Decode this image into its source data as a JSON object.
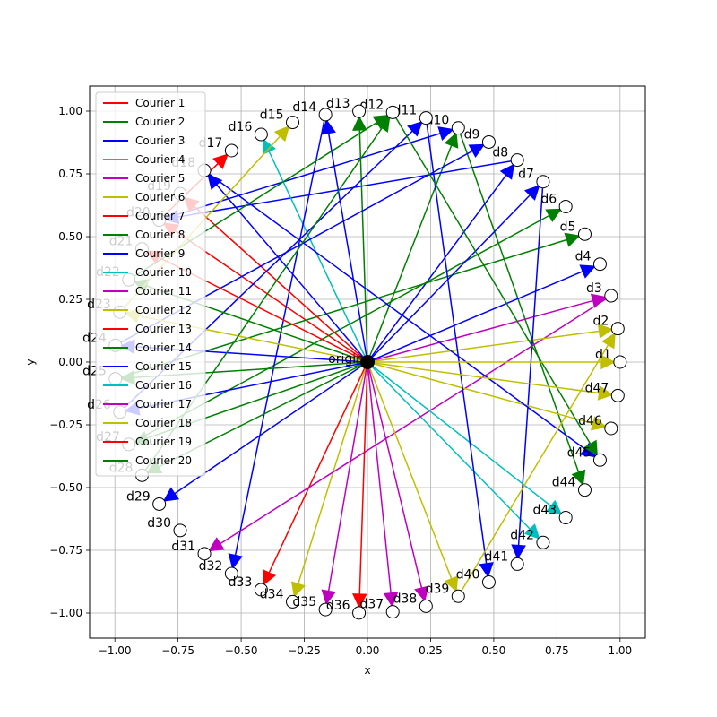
{
  "chart_data": {
    "type": "scatter",
    "title": "",
    "xlabel": "x",
    "ylabel": "y",
    "xlim": [
      -1.1,
      1.1
    ],
    "ylim": [
      -1.1,
      1.1
    ],
    "xticks": [
      -1.0,
      -0.75,
      -0.5,
      -0.25,
      0.0,
      0.25,
      0.5,
      0.75,
      1.0
    ],
    "yticks": [
      -1.0,
      -0.75,
      -0.5,
      -0.25,
      0.0,
      0.25,
      0.5,
      0.75,
      1.0
    ],
    "xtick_labels": [
      "−1.00",
      "−0.75",
      "−0.50",
      "−0.25",
      "0.00",
      "0.25",
      "0.50",
      "0.75",
      "1.00"
    ],
    "ytick_labels": [
      "−1.00",
      "−0.75",
      "−0.50",
      "−0.25",
      "0.00",
      "0.25",
      "0.50",
      "0.75",
      "1.00"
    ],
    "grid": true,
    "legend_position": "upper-left",
    "origin": {
      "label": "origin",
      "x": 0,
      "y": 0
    },
    "destinations_count": 47,
    "destinations_note": "d1..d47 evenly spaced on unit circle, angle = 2*pi*(i-1)/47",
    "destination_labels": [
      "d1",
      "d2",
      "d3",
      "d4",
      "d5",
      "d6",
      "d7",
      "d8",
      "d9",
      "d10",
      "d11",
      "d12",
      "d13",
      "d14",
      "d15",
      "d16",
      "d17",
      "d18",
      "d19",
      "d20",
      "d21",
      "d22",
      "d23",
      "d24",
      "d25",
      "d26",
      "d27",
      "d28",
      "d29",
      "d30",
      "d31",
      "d32",
      "d33",
      "d34",
      "d35",
      "d36",
      "d37",
      "d38",
      "d39",
      "d40",
      "d41",
      "d42",
      "d43",
      "d44",
      "d45",
      "d46",
      "d47"
    ],
    "series": [
      {
        "name": "Courier 1",
        "color": "#ff0000",
        "route": [
          33
        ]
      },
      {
        "name": "Courier 2",
        "color": "#008000",
        "route": [
          10,
          44
        ]
      },
      {
        "name": "Courier 3",
        "color": "#0000ff",
        "route": [
          8,
          20,
          10
        ]
      },
      {
        "name": "Courier 4",
        "color": "#00bfbf",
        "route": [
          16
        ]
      },
      {
        "name": "Courier 5",
        "color": "#bf00bf",
        "route": [
          37
        ]
      },
      {
        "name": "Courier 6",
        "color": "#bfbf00",
        "route": [
          34
        ]
      },
      {
        "name": "Courier 7",
        "color": "#ff0000",
        "route": [
          20,
          17
        ]
      },
      {
        "name": "Courier 8",
        "color": "#008000",
        "route": [
          27,
          6
        ]
      },
      {
        "name": "Courier 9",
        "color": "#0000ff",
        "route": [
          14,
          32
        ]
      },
      {
        "name": "Courier 10",
        "color": "#00bfbf",
        "route": [
          42
        ]
      },
      {
        "name": "Courier 11",
        "color": "#bf00bf",
        "route": [
          3,
          31
        ]
      },
      {
        "name": "Courier 12",
        "color": "#bfbf00",
        "route": [
          2
        ]
      },
      {
        "name": "Courier 13",
        "color": "#ff0000",
        "route": [
          36
        ]
      },
      {
        "name": "Courier 14",
        "color": "#008000",
        "route": [
          25,
          5
        ]
      },
      {
        "name": "Courier 15",
        "color": "#0000ff",
        "route": [
          7,
          41
        ]
      },
      {
        "name": "Courier 16",
        "color": "#00bfbf",
        "route": [
          43
        ]
      },
      {
        "name": "Courier 17",
        "color": "#bf00bf",
        "route": [
          38
        ]
      },
      {
        "name": "Courier 18",
        "color": "#bfbf00",
        "route": [
          46
        ]
      },
      {
        "name": "Courier 19",
        "color": "#ff0000",
        "route": [
          19
        ]
      },
      {
        "name": "Courier 20",
        "color": "#008000",
        "route": [
          13
        ]
      },
      {
        "name": "",
        "color": "#0000ff",
        "route": [
          4
        ]
      },
      {
        "name": "",
        "color": "#0000ff",
        "route": [
          29
        ]
      },
      {
        "name": "",
        "color": "#0000ff",
        "route": [
          18,
          45
        ]
      },
      {
        "name": "",
        "color": "#0000ff",
        "route": [
          24,
          9
        ]
      },
      {
        "name": "",
        "color": "#0000ff",
        "route": [
          26,
          11,
          40
        ]
      },
      {
        "name": "",
        "color": "#008000",
        "route": [
          22,
          12,
          45
        ]
      },
      {
        "name": "",
        "color": "#bfbf00",
        "route": [
          47
        ]
      },
      {
        "name": "",
        "color": "#bfbf00",
        "route": [
          1
        ]
      },
      {
        "name": "",
        "color": "#bfbf00",
        "route": [
          23,
          15
        ]
      },
      {
        "name": "",
        "color": "#bfbf00",
        "route": [
          39,
          2
        ]
      },
      {
        "name": "",
        "color": "#bf00bf",
        "route": [
          35
        ]
      },
      {
        "name": "",
        "color": "#ff0000",
        "route": [
          21
        ]
      },
      {
        "name": "",
        "color": "#008000",
        "route": [
          28,
          12
        ]
      }
    ]
  }
}
